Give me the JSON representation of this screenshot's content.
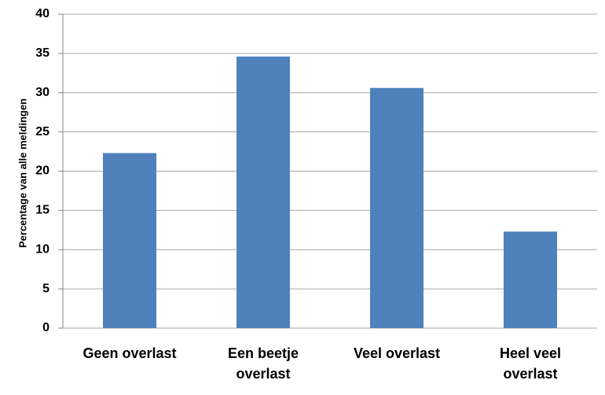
{
  "chart_data": {
    "type": "bar",
    "ylabel": "Percentage van alle meldingen",
    "categories": [
      "Geen overlast",
      "Een beetje overlast",
      "Veel overlast",
      "Heel veel overlast"
    ],
    "values": [
      22.3,
      34.6,
      30.6,
      12.3
    ],
    "color": "#4f81bd",
    "ylim": [
      0,
      40
    ],
    "yticks": [
      0,
      5,
      10,
      15,
      20,
      25,
      30,
      35,
      40
    ],
    "grid": true
  }
}
